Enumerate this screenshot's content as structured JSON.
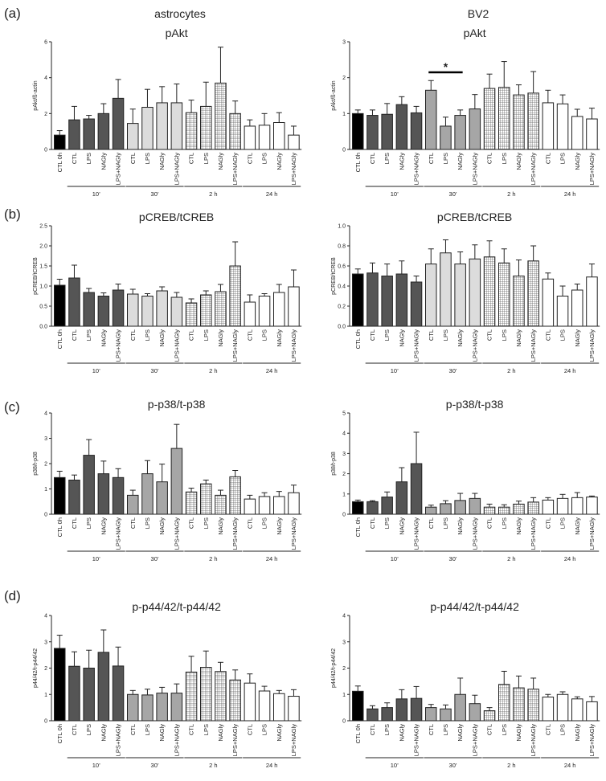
{
  "figure": {
    "panel_labels": [
      "(a)",
      "(b)",
      "(c)",
      "(d)"
    ],
    "column_headers": [
      "astrocytes",
      "BV2"
    ]
  },
  "groups": [
    "10’",
    "30’",
    "2 h",
    "24 h"
  ],
  "colors": {
    "ctl0": "#000000",
    "g10": "#555555",
    "g30_light": "#dcdcdc",
    "g30_mid": "#a6a6a6",
    "pattern": "#666666",
    "axis": "#222222"
  },
  "chart_data": [
    {
      "type": "bar",
      "id": "a-astro",
      "title": "pAkt",
      "ylabel": "pAkt/ß-actin",
      "ylim": [
        0,
        6
      ],
      "yticks": [
        0,
        2,
        4,
        6
      ],
      "categories": [
        "CTL 0h",
        "CTL",
        "LPS",
        "NAGly",
        "LPS+NAGly",
        "CTL",
        "LPS",
        "NAGly",
        "LPS+NAGly",
        "CTL",
        "LPS",
        "NAGly",
        "LPS+NAGly",
        "CTL",
        "LPS",
        "NAGly",
        "LPS+NAGly"
      ],
      "values": [
        0.8,
        1.65,
        1.7,
        2.0,
        2.85,
        1.45,
        2.35,
        2.6,
        2.6,
        2.05,
        2.4,
        3.7,
        2.0,
        1.3,
        1.35,
        1.5,
        0.8
      ],
      "errors": [
        0.25,
        0.75,
        0.2,
        0.55,
        1.05,
        0.8,
        1.0,
        0.9,
        1.05,
        0.7,
        1.35,
        2.0,
        0.7,
        0.35,
        0.65,
        0.55,
        0.5
      ],
      "style30": "light",
      "sig": null
    },
    {
      "type": "bar",
      "id": "a-bv2",
      "title": "pAkt",
      "ylabel": "pAkt/ß-actin",
      "ylim": [
        0,
        3
      ],
      "yticks": [
        0,
        1,
        2,
        3
      ],
      "categories": [
        "CTL 0h",
        "CTL",
        "LPS",
        "NAGly",
        "LPS+NAGly",
        "CTL",
        "LPS",
        "NAGly",
        "LPS+NAGly",
        "CTL",
        "LPS",
        "NAGly",
        "LPS+NAGly",
        "CTL",
        "LPS",
        "NAGly",
        "LPS+NAGly"
      ],
      "values": [
        1.0,
        0.95,
        0.98,
        1.25,
        1.02,
        1.65,
        0.65,
        0.95,
        1.13,
        1.7,
        1.73,
        1.52,
        1.57,
        1.3,
        1.27,
        0.92,
        0.85
      ],
      "errors": [
        0.1,
        0.15,
        0.3,
        0.22,
        0.18,
        0.27,
        0.25,
        0.15,
        0.4,
        0.4,
        0.72,
        0.28,
        0.6,
        0.35,
        0.25,
        0.2,
        0.3
      ],
      "style30": "mid",
      "sig": {
        "from": 5,
        "to": 7,
        "level": 2.15,
        "label": "*"
      }
    },
    {
      "type": "bar",
      "id": "b-astro",
      "title": "pCREB/tCREB",
      "ylabel": "pCREB/tCREB",
      "ylim": [
        0,
        2.5
      ],
      "yticks": [
        0.0,
        0.5,
        1.0,
        1.5,
        2.0,
        2.5
      ],
      "tickdec": 1,
      "categories": [
        "CTL 0h",
        "CTL",
        "LPS",
        "NAGly",
        "LPS+NAGly",
        "CTL",
        "LPS",
        "NAGly",
        "LPS+NAGly",
        "CTL",
        "LPS",
        "NAGly",
        "LPS+NAGly",
        "CTL",
        "LPS",
        "NAGly",
        "LPS+NAGly"
      ],
      "values": [
        1.02,
        1.2,
        0.84,
        0.75,
        0.9,
        0.8,
        0.75,
        0.88,
        0.72,
        0.58,
        0.78,
        0.86,
        1.5,
        0.6,
        0.75,
        0.84,
        0.98
      ],
      "errors": [
        0.15,
        0.32,
        0.1,
        0.08,
        0.15,
        0.12,
        0.06,
        0.1,
        0.12,
        0.1,
        0.1,
        0.18,
        0.6,
        0.18,
        0.06,
        0.2,
        0.42
      ],
      "style30": "light",
      "sig": null
    },
    {
      "type": "bar",
      "id": "b-bv2",
      "title": "pCREB/tCREB",
      "ylabel": "pCREB/tCREB",
      "ylim": [
        0,
        1.0
      ],
      "yticks": [
        0.0,
        0.2,
        0.4,
        0.6,
        0.8,
        1.0
      ],
      "tickdec": 1,
      "categories": [
        "CTL 0h",
        "CTL",
        "LPS",
        "NAGly",
        "LPS+NAGly",
        "CTL",
        "LPS",
        "NAGly",
        "LPS+NAGly",
        "CTL",
        "LPS",
        "NAGly",
        "LPS+NAGly",
        "CTL",
        "LPS",
        "NAGly",
        "LPS+NAGly"
      ],
      "values": [
        0.52,
        0.53,
        0.5,
        0.52,
        0.44,
        0.62,
        0.73,
        0.62,
        0.67,
        0.69,
        0.63,
        0.5,
        0.65,
        0.47,
        0.3,
        0.36,
        0.49
      ],
      "errors": [
        0.05,
        0.1,
        0.12,
        0.13,
        0.06,
        0.15,
        0.13,
        0.12,
        0.14,
        0.16,
        0.14,
        0.16,
        0.15,
        0.06,
        0.1,
        0.06,
        0.13
      ],
      "style30": "light",
      "sig": null
    },
    {
      "type": "bar",
      "id": "c-astro",
      "title": "p-p38/t-p38",
      "ylabel": "p38/t-p38",
      "ylim": [
        0,
        4
      ],
      "yticks": [
        0,
        1,
        2,
        3,
        4
      ],
      "categories": [
        "CTL 0h",
        "CTL",
        "LPS",
        "NAGly",
        "LPS+NAGly",
        "CTL",
        "LPS",
        "NAGly",
        "LPS+NAGly",
        "CTL",
        "LPS",
        "NAGly",
        "LPS+NAGly",
        "CTL",
        "LPS",
        "NAGly",
        "LPS+NAGly"
      ],
      "values": [
        1.45,
        1.35,
        2.33,
        1.6,
        1.45,
        0.75,
        1.6,
        1.28,
        2.6,
        0.88,
        1.2,
        0.75,
        1.48,
        0.6,
        0.7,
        0.7,
        0.85
      ],
      "errors": [
        0.25,
        0.2,
        0.62,
        0.5,
        0.35,
        0.2,
        0.52,
        0.7,
        0.95,
        0.15,
        0.15,
        0.2,
        0.25,
        0.15,
        0.15,
        0.2,
        0.3
      ],
      "style30": "mid",
      "sig": null
    },
    {
      "type": "bar",
      "id": "c-bv2",
      "title": "p-p38/t-p38",
      "ylabel": "p38/t-p38",
      "ylim": [
        0,
        5
      ],
      "yticks": [
        0,
        1,
        2,
        3,
        4,
        5
      ],
      "categories": [
        "CTL 0h",
        "CTL",
        "LPS",
        "NAGly",
        "LPS+NAGly",
        "CTL",
        "LPS",
        "NAGly",
        "LPS+NAGly",
        "CTL",
        "LPS",
        "NAGly",
        "LPS+NAGly",
        "CTL",
        "LPS",
        "NAGly",
        "LPS+NAGly"
      ],
      "values": [
        0.62,
        0.62,
        0.85,
        1.6,
        2.5,
        0.35,
        0.52,
        0.68,
        0.78,
        0.35,
        0.35,
        0.5,
        0.6,
        0.7,
        0.78,
        0.82,
        0.85
      ],
      "errors": [
        0.08,
        0.05,
        0.25,
        0.7,
        1.55,
        0.1,
        0.15,
        0.35,
        0.25,
        0.15,
        0.12,
        0.15,
        0.22,
        0.12,
        0.2,
        0.25,
        0.05
      ],
      "style30": "mid",
      "sig": null
    },
    {
      "type": "bar",
      "id": "d-astro",
      "title": "p-p44/42/t-p44/42",
      "ylabel": "p44/42/t-p44/42",
      "ylim": [
        0,
        4
      ],
      "yticks": [
        0,
        1,
        2,
        3,
        4
      ],
      "categories": [
        "CTL 0h",
        "CTL",
        "LPS",
        "NAGly",
        "LPS+NAGly",
        "CTL",
        "LPS",
        "NAGly",
        "LPS+NAGly",
        "CTL",
        "LPS",
        "NAGly",
        "LPS+NAGly",
        "CTL",
        "LPS",
        "NAGly",
        "LPS+NAGly"
      ],
      "values": [
        2.75,
        2.07,
        2.0,
        2.6,
        2.08,
        1.0,
        0.98,
        1.05,
        1.05,
        1.85,
        2.03,
        1.87,
        1.55,
        1.43,
        1.13,
        1.03,
        0.93
      ],
      "errors": [
        0.5,
        0.55,
        0.68,
        0.85,
        0.72,
        0.15,
        0.22,
        0.22,
        0.35,
        0.6,
        0.62,
        0.35,
        0.38,
        0.35,
        0.18,
        0.12,
        0.25
      ],
      "style30": "mid",
      "sig": null
    },
    {
      "type": "bar",
      "id": "d-bv2",
      "title": "p-p44/42/t-p44/42",
      "ylabel": "p44/42/t-p44/42",
      "ylim": [
        0,
        4
      ],
      "yticks": [
        0,
        1,
        2,
        3,
        4
      ],
      "categories": [
        "CTL 0h",
        "CTL",
        "LPS",
        "NAGly",
        "LPS+NAGly",
        "CTL",
        "LPS",
        "NAGly",
        "LPS+NAGly",
        "CTL",
        "LPS",
        "NAGly",
        "LPS+NAGly",
        "CTL",
        "LPS",
        "NAGly",
        "LPS+NAGly"
      ],
      "values": [
        1.12,
        0.45,
        0.5,
        0.83,
        0.85,
        0.5,
        0.45,
        1.0,
        0.65,
        0.38,
        1.38,
        1.25,
        1.2,
        0.9,
        1.0,
        0.83,
        0.72
      ],
      "errors": [
        0.2,
        0.12,
        0.18,
        0.35,
        0.45,
        0.12,
        0.15,
        0.62,
        0.32,
        0.12,
        0.5,
        0.45,
        0.42,
        0.1,
        0.1,
        0.08,
        0.2
      ],
      "style30": "mid",
      "sig": null
    }
  ]
}
